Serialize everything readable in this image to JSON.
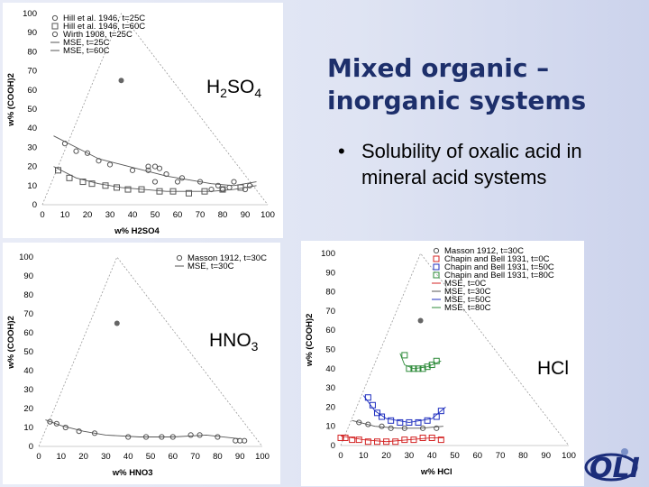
{
  "slide": {
    "title_line1": "Mixed organic –",
    "title_line2": "inorganic systems",
    "bullet": "Solubility of oxalic acid in mineral acid systems",
    "bullet_symbol": "•",
    "label_h2so4_base": "H",
    "label_h2so4_sub1": "2",
    "label_h2so4_mid": "SO",
    "label_h2so4_sub2": "4",
    "label_hno3_base": "HNO",
    "label_hno3_sub": "3",
    "label_hcl": "HCl",
    "logo_text": "OLI",
    "colors": {
      "title": "#1d2f6b",
      "logo": "#1b2d7a",
      "blue": "#1f2fbf",
      "red": "#d42424",
      "green": "#2e8b3a"
    }
  },
  "chart_data": [
    {
      "type": "scatter",
      "name_hint": "H2SO4 ternary",
      "xlabel": "w% H2SO4",
      "ylabel": "w% (COOH)2",
      "xlim": [
        0,
        100
      ],
      "ylim": [
        0,
        100
      ],
      "xticks": [
        "0",
        "10",
        "20",
        "30",
        "40",
        "50",
        "60",
        "70",
        "80",
        "90",
        "100"
      ],
      "yticks": [
        "0",
        "10",
        "20",
        "30",
        "40",
        "50",
        "60",
        "70",
        "80",
        "90",
        "100"
      ],
      "legend": [
        "Hill et al. 1946, t=25C",
        "Hill et al. 1946, t=60C",
        "Wirth 1908, t=25C",
        "MSE, t=25C",
        "MSE, t=60C"
      ],
      "legend_position": "top-left",
      "series": [
        {
          "name": "Hill et al. 1946, t=25C",
          "marker": "circle",
          "color": "#555555",
          "points": [
            [
              10,
              32
            ],
            [
              15,
              28
            ],
            [
              20,
              27
            ],
            [
              25,
              23
            ],
            [
              30,
              21
            ],
            [
              40,
              18
            ],
            [
              47,
              20
            ],
            [
              55,
              16
            ],
            [
              62,
              14
            ],
            [
              70,
              12
            ],
            [
              78,
              10
            ],
            [
              85,
              12
            ],
            [
              90,
              8
            ],
            [
              92,
              10
            ],
            [
              75,
              8
            ],
            [
              83,
              9
            ]
          ]
        },
        {
          "name": "Hill et al. 1946, t=60C",
          "marker": "square",
          "color": "#555555",
          "points": [
            [
              7,
              18
            ],
            [
              12,
              14
            ],
            [
              18,
              12
            ],
            [
              22,
              11
            ],
            [
              28,
              10
            ],
            [
              33,
              9
            ],
            [
              38,
              8
            ],
            [
              44,
              8
            ],
            [
              52,
              7
            ],
            [
              58,
              7
            ],
            [
              65,
              6
            ],
            [
              72,
              7
            ],
            [
              80,
              8
            ],
            [
              88,
              9
            ]
          ]
        },
        {
          "name": "Wirth 1908, t=25C",
          "marker": "circle",
          "color": "#555555",
          "points": [
            [
              50,
              20
            ],
            [
              52,
              19
            ],
            [
              47,
              18
            ],
            [
              80,
              8
            ],
            [
              60,
              12
            ],
            [
              50,
              12
            ]
          ]
        },
        {
          "name": "MSE, t=25C",
          "marker": "line",
          "color": "#555555",
          "points": [
            [
              5,
              36
            ],
            [
              15,
              30
            ],
            [
              25,
              24
            ],
            [
              35,
              21
            ],
            [
              45,
              18
            ],
            [
              55,
              15
            ],
            [
              65,
              13
            ],
            [
              75,
              11
            ],
            [
              85,
              10
            ],
            [
              95,
              12
            ]
          ]
        },
        {
          "name": "MSE, t=60C",
          "marker": "line",
          "color": "#555555",
          "points": [
            [
              5,
              20
            ],
            [
              15,
              14
            ],
            [
              25,
              11
            ],
            [
              35,
              9
            ],
            [
              45,
              8
            ],
            [
              55,
              7
            ],
            [
              65,
              7
            ],
            [
              75,
              7
            ],
            [
              85,
              8
            ],
            [
              95,
              10
            ]
          ]
        }
      ],
      "grid": false,
      "triangle_apex_marker": [
        35,
        65
      ]
    },
    {
      "type": "scatter",
      "name_hint": "HNO3 ternary",
      "xlabel": "w% HNO3",
      "ylabel": "w% (COOH)2",
      "xlim": [
        0,
        100
      ],
      "ylim": [
        0,
        100
      ],
      "xticks": [
        "0",
        "10",
        "20",
        "30",
        "40",
        "50",
        "60",
        "70",
        "80",
        "90",
        "100"
      ],
      "yticks": [
        "0",
        "10",
        "20",
        "30",
        "40",
        "50",
        "60",
        "70",
        "80",
        "90",
        "100"
      ],
      "legend": [
        "Masson 1912, t=30C",
        "MSE, t=30C"
      ],
      "legend_position": "top-right",
      "series": [
        {
          "name": "Masson 1912, t=30C",
          "marker": "circle",
          "color": "#555555",
          "points": [
            [
              5,
              13
            ],
            [
              8,
              12
            ],
            [
              12,
              10
            ],
            [
              18,
              8
            ],
            [
              25,
              7
            ],
            [
              40,
              5
            ],
            [
              48,
              5
            ],
            [
              55,
              5
            ],
            [
              60,
              5
            ],
            [
              68,
              6
            ],
            [
              72,
              6
            ],
            [
              80,
              5
            ],
            [
              88,
              3
            ],
            [
              90,
              3
            ],
            [
              92,
              3
            ]
          ]
        },
        {
          "name": "MSE, t=30C",
          "marker": "line",
          "color": "#555555",
          "points": [
            [
              3,
              14
            ],
            [
              10,
              11
            ],
            [
              20,
              8
            ],
            [
              30,
              6
            ],
            [
              45,
              5
            ],
            [
              60,
              5
            ],
            [
              75,
              6
            ],
            [
              90,
              4
            ]
          ]
        }
      ],
      "grid": false,
      "triangle_apex_marker": [
        35,
        65
      ]
    },
    {
      "type": "scatter",
      "name_hint": "HCl ternary",
      "xlabel": "w% HCl",
      "ylabel": "w% (COOH)2",
      "xlim": [
        0,
        100
      ],
      "ylim": [
        0,
        100
      ],
      "xticks": [
        "0",
        "10",
        "20",
        "30",
        "40",
        "50",
        "60",
        "70",
        "80",
        "90",
        "100"
      ],
      "yticks": [
        "0",
        "10",
        "20",
        "30",
        "40",
        "50",
        "60",
        "70",
        "80",
        "90",
        "100"
      ],
      "legend": [
        "Masson 1912, t=30C",
        "Chapin and Bell 1931, t=0C",
        "Chapin and Bell 1931, t=50C",
        "Chapin and Bell 1931, t=80C",
        "MSE, t=0C",
        "MSE, t=30C",
        "MSE, t=50C",
        "MSE, t=80C"
      ],
      "legend_position": "top-right",
      "series": [
        {
          "name": "Masson 1912, t=30C",
          "marker": "circle",
          "color": "#555555",
          "points": [
            [
              8,
              12
            ],
            [
              12,
              11
            ],
            [
              18,
              10
            ],
            [
              22,
              9
            ],
            [
              28,
              9
            ],
            [
              36,
              9
            ],
            [
              42,
              9
            ]
          ]
        },
        {
          "name": "Chapin and Bell 1931, t=0C",
          "marker": "square",
          "color": "#d42424",
          "points": [
            [
              0,
              4
            ],
            [
              2,
              4
            ],
            [
              5,
              3
            ],
            [
              8,
              3
            ],
            [
              12,
              2
            ],
            [
              16,
              2
            ],
            [
              20,
              2
            ],
            [
              24,
              2
            ],
            [
              28,
              3
            ],
            [
              32,
              3
            ],
            [
              36,
              4
            ],
            [
              40,
              4
            ],
            [
              44,
              3
            ]
          ]
        },
        {
          "name": "Chapin and Bell 1931, t=50C",
          "marker": "square",
          "color": "#1f2fbf",
          "points": [
            [
              12,
              25
            ],
            [
              14,
              21
            ],
            [
              16,
              17
            ],
            [
              18,
              15
            ],
            [
              22,
              13
            ],
            [
              26,
              12
            ],
            [
              30,
              12
            ],
            [
              34,
              12
            ],
            [
              38,
              13
            ],
            [
              42,
              15
            ],
            [
              44,
              18
            ]
          ]
        },
        {
          "name": "Chapin and Bell 1931, t=80C",
          "marker": "square",
          "color": "#2e8b3a",
          "points": [
            [
              28,
              47
            ],
            [
              30,
              40
            ],
            [
              32,
              40
            ],
            [
              34,
              40
            ],
            [
              36,
              40
            ],
            [
              38,
              41
            ],
            [
              40,
              42
            ],
            [
              42,
              44
            ]
          ]
        },
        {
          "name": "MSE, t=0C",
          "marker": "line",
          "color": "#d42424",
          "points": [
            [
              0,
              5
            ],
            [
              10,
              3
            ],
            [
              20,
              2
            ],
            [
              30,
              3
            ],
            [
              40,
              4
            ],
            [
              45,
              4
            ]
          ]
        },
        {
          "name": "MSE, t=30C",
          "marker": "line",
          "color": "#555555",
          "points": [
            [
              5,
              13
            ],
            [
              15,
              10
            ],
            [
              25,
              9
            ],
            [
              35,
              9
            ],
            [
              45,
              10
            ]
          ]
        },
        {
          "name": "MSE, t=50C",
          "marker": "line",
          "color": "#1f2fbf",
          "points": [
            [
              10,
              26
            ],
            [
              15,
              18
            ],
            [
              20,
              14
            ],
            [
              30,
              12
            ],
            [
              40,
              14
            ],
            [
              46,
              20
            ]
          ]
        },
        {
          "name": "MSE, t=80C",
          "marker": "line",
          "color": "#2e8b3a",
          "points": [
            [
              26,
              48
            ],
            [
              28,
              42
            ],
            [
              32,
              40
            ],
            [
              38,
              41
            ],
            [
              44,
              44
            ]
          ]
        }
      ],
      "grid": false,
      "triangle_apex_marker": [
        35,
        65
      ]
    }
  ]
}
